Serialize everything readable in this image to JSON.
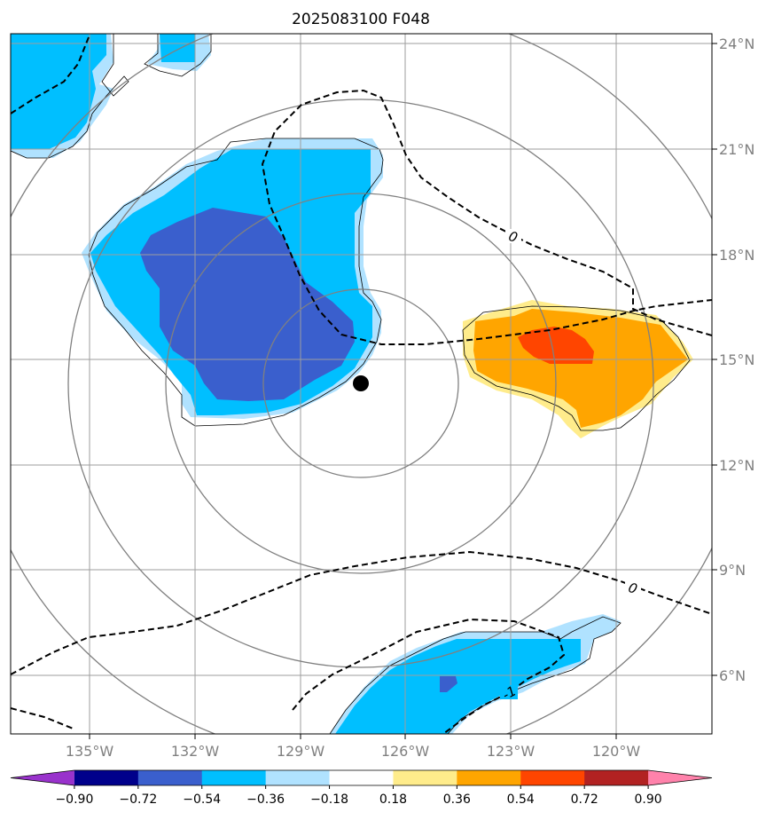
{
  "chart_data": {
    "type": "contourf",
    "title": "2025083100 F048",
    "xaxis": {
      "ticks": [
        -135,
        -132,
        -129,
        -126,
        -123,
        -120
      ],
      "labels": [
        "135°W",
        "132°W",
        "129°W",
        "126°W",
        "123°W",
        "120°W"
      ],
      "range": [
        -137.25,
        -117.25
      ]
    },
    "yaxis": {
      "ticks": [
        6,
        9,
        12,
        15,
        18,
        21,
        24
      ],
      "labels": [
        "6°N",
        "9°N",
        "12°N",
        "15°N",
        "18°N",
        "21°N",
        "24°N"
      ],
      "range": [
        4.4,
        24.3
      ],
      "side": "right"
    },
    "grid": true,
    "storm_center": {
      "lon": -127.3,
      "lat": 14.3
    },
    "range_rings_deg": [
      3,
      6,
      9,
      12
    ],
    "colorbar": {
      "levels": [
        -0.9,
        -0.72,
        -0.54,
        -0.36,
        -0.18,
        0.18,
        0.36,
        0.54,
        0.72,
        0.9
      ],
      "tick_labels": [
        "−0.90",
        "−0.72",
        "−0.54",
        "−0.36",
        "−0.18",
        "0.18",
        "0.36",
        "0.54",
        "0.72",
        "0.90"
      ],
      "colors": [
        "#9932cc",
        "#00008b",
        "#3a5fcd",
        "#00bfff",
        "#b0e2ff",
        "#ffffff",
        "#ffec8b",
        "#ffa500",
        "#ff4500",
        "#b22222",
        "#ff82ab"
      ],
      "extend": "both"
    },
    "contour_labels": [
      "0",
      "0",
      "-1"
    ],
    "regions": [
      {
        "name": "west-central negative anomaly",
        "min_level": -0.72,
        "levels": [
          -0.18,
          -0.36,
          -0.54
        ]
      },
      {
        "name": "east positive anomaly",
        "max_level": 0.72,
        "levels": [
          0.18,
          0.36,
          0.54
        ]
      },
      {
        "name": "south negative anomaly",
        "min_level": -0.72,
        "levels": [
          -0.18,
          -0.36,
          -0.54
        ]
      },
      {
        "name": "northwest negative anomaly",
        "min_level": -0.36,
        "levels": [
          -0.18,
          -0.36
        ]
      }
    ]
  }
}
